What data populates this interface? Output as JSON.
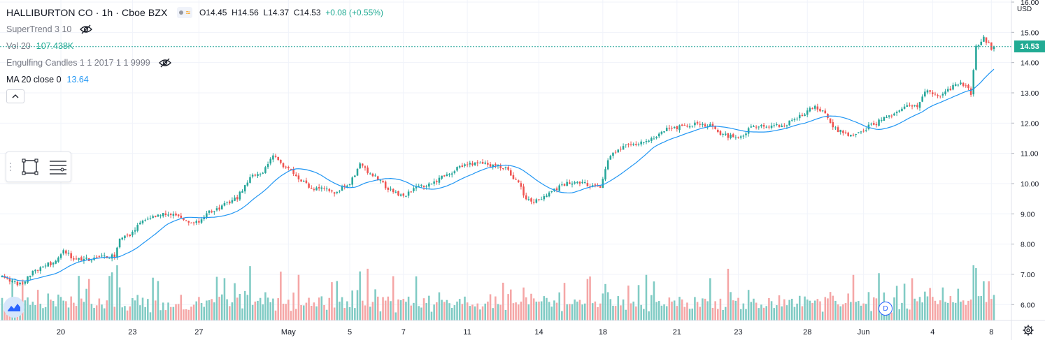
{
  "header": {
    "title": "HALLIBURTON CO · 1h · Cboe BZX",
    "open": "O14.45",
    "high": "H14.56",
    "low": "L14.37",
    "close": "C14.53",
    "change": "+0.08 (+0.55%)"
  },
  "indicators": [
    {
      "name": "SuperTrend 3 10",
      "value": "",
      "hidden": true
    },
    {
      "name": "Vol 20",
      "value": "107.438K",
      "value_color": "#22ab94",
      "hidden": false
    },
    {
      "name": "Engulfing Candles 1 1 2017 1 1 9999",
      "value": "",
      "hidden": true
    },
    {
      "name": "MA 20 close 0",
      "value": "13.64",
      "value_color": "#2196f3",
      "hidden": false
    }
  ],
  "price_axis": {
    "currency": "USD",
    "last_price": "14.53",
    "last_price_color": "#22ab94"
  },
  "dividend_marker": "D",
  "colors": {
    "up": "#26a69a",
    "down": "#ef5350",
    "volume_up": "#80cbc4",
    "volume_down": "#f5a6a6",
    "ma": "#2196f3",
    "grid": "#f0f3fa"
  },
  "chart_data": {
    "type": "candlestick",
    "title": "HALLIBURTON CO · 1h · Cboe BZX",
    "ylim": [
      5.73,
      16.0
    ],
    "y_ticks": [
      6.0,
      7.0,
      8.0,
      9.0,
      10.0,
      11.0,
      12.0,
      13.0,
      14.0,
      15.0,
      16.0
    ],
    "x_labels": [
      "20",
      "23",
      "27",
      "May",
      "5",
      "7",
      "11",
      "14",
      "18",
      "21",
      "23",
      "28",
      "Jun",
      "4",
      "8"
    ],
    "x_label_bar_index": [
      23,
      51,
      77,
      112,
      136,
      157,
      182,
      210,
      235,
      264,
      288,
      315,
      337,
      364,
      387
    ],
    "grid": true,
    "bar_count": 389,
    "anchors": [
      [
        0,
        7.0
      ],
      [
        5,
        6.7
      ],
      [
        8,
        6.7
      ],
      [
        12,
        7.1
      ],
      [
        20,
        7.4
      ],
      [
        24,
        7.8
      ],
      [
        28,
        7.5
      ],
      [
        34,
        7.5
      ],
      [
        40,
        7.6
      ],
      [
        44,
        7.6
      ],
      [
        46,
        8.2
      ],
      [
        50,
        8.3
      ],
      [
        55,
        8.8
      ],
      [
        62,
        8.95
      ],
      [
        66,
        9.0
      ],
      [
        70,
        8.85
      ],
      [
        76,
        8.7
      ],
      [
        80,
        9.0
      ],
      [
        85,
        9.2
      ],
      [
        92,
        9.55
      ],
      [
        97,
        10.2
      ],
      [
        102,
        10.4
      ],
      [
        106,
        11.0
      ],
      [
        110,
        10.6
      ],
      [
        116,
        10.2
      ],
      [
        120,
        9.9
      ],
      [
        126,
        9.8
      ],
      [
        130,
        9.7
      ],
      [
        136,
        10.0
      ],
      [
        140,
        10.6
      ],
      [
        146,
        10.2
      ],
      [
        153,
        9.7
      ],
      [
        158,
        9.6
      ],
      [
        162,
        9.9
      ],
      [
        168,
        10.0
      ],
      [
        174,
        10.3
      ],
      [
        180,
        10.6
      ],
      [
        186,
        10.7
      ],
      [
        192,
        10.6
      ],
      [
        197,
        10.5
      ],
      [
        202,
        10.0
      ],
      [
        205,
        9.5
      ],
      [
        210,
        9.4
      ],
      [
        214,
        9.7
      ],
      [
        218,
        9.9
      ],
      [
        224,
        10.1
      ],
      [
        230,
        9.95
      ],
      [
        234,
        9.9
      ],
      [
        237,
        10.8
      ],
      [
        242,
        11.2
      ],
      [
        248,
        11.3
      ],
      [
        254,
        11.5
      ],
      [
        260,
        11.8
      ],
      [
        266,
        11.9
      ],
      [
        272,
        12.0
      ],
      [
        278,
        11.9
      ],
      [
        282,
        11.6
      ],
      [
        288,
        11.5
      ],
      [
        294,
        11.9
      ],
      [
        300,
        11.9
      ],
      [
        305,
        11.9
      ],
      [
        310,
        12.1
      ],
      [
        315,
        12.4
      ],
      [
        318,
        12.5
      ],
      [
        322,
        12.3
      ],
      [
        326,
        11.8
      ],
      [
        332,
        11.6
      ],
      [
        337,
        11.8
      ],
      [
        342,
        12.0
      ],
      [
        348,
        12.3
      ],
      [
        354,
        12.6
      ],
      [
        358,
        12.6
      ],
      [
        362,
        13.1
      ],
      [
        366,
        12.9
      ],
      [
        372,
        13.2
      ],
      [
        376,
        13.3
      ],
      [
        378,
        13.2
      ],
      [
        379,
        13.0
      ],
      [
        381,
        14.5
      ],
      [
        384,
        14.85
      ],
      [
        387,
        14.45
      ],
      [
        388,
        14.53
      ]
    ],
    "volume_range_k": [
      0,
      300
    ],
    "ma_period": 20,
    "last": {
      "open": 14.45,
      "high": 14.56,
      "low": 14.37,
      "close": 14.53
    }
  }
}
